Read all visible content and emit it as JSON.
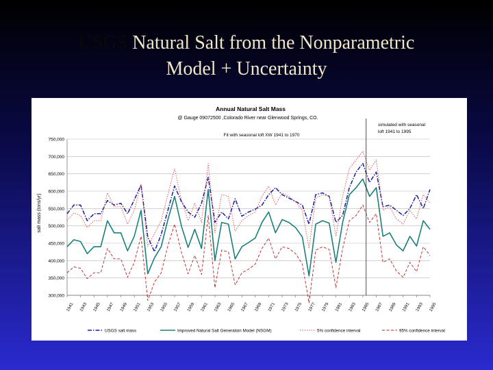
{
  "slide": {
    "title_prefix": "USGS",
    "title_line1": "Natural Salt from the Nonparametric",
    "title_line2": "Model + Uncertainty"
  },
  "chart_data": {
    "type": "line",
    "title": "Annual Natural Salt Mass",
    "subtitle": "@ Gauge 09072500 ,Colorado River near Glenwood Springs, CO.",
    "annotation_fit": "Fit with seasonal loft XW 1941 to 1970",
    "annotation_sim": "simulated with seasonal loft 1941 to 1995",
    "ylabel": "salt mass (tons/yr)",
    "ylim": [
      300000,
      750000
    ],
    "y_tick_labels": [
      "300,000",
      "350,000",
      "400,000",
      "450,000",
      "500,000",
      "550,000",
      "600,000",
      "650,000",
      "700,000",
      "750,000"
    ],
    "years": [
      1941,
      1942,
      1943,
      1944,
      1945,
      1946,
      1947,
      1948,
      1949,
      1950,
      1951,
      1952,
      1953,
      1954,
      1955,
      1956,
      1957,
      1958,
      1959,
      1960,
      1961,
      1962,
      1963,
      1964,
      1965,
      1966,
      1967,
      1968,
      1969,
      1970,
      1971,
      1972,
      1973,
      1974,
      1975,
      1976,
      1977,
      1978,
      1979,
      1980,
      1981,
      1982,
      1983,
      1984,
      1985,
      1986,
      1987,
      1988,
      1989,
      1990,
      1991,
      1992,
      1993,
      1994,
      1995
    ],
    "x_tick_labels": [
      "1941",
      "1943",
      "1945",
      "1947",
      "1949",
      "1951",
      "1953",
      "1955",
      "1957",
      "1959",
      "1961",
      "1963",
      "1965",
      "1967",
      "1969",
      "1971",
      "1973",
      "1975",
      "1977",
      "1979",
      "1981",
      "1983",
      "1985",
      "1987",
      "1989",
      "1991",
      "1993",
      "1995"
    ],
    "divider_year": 1985.5,
    "series": [
      {
        "name": "USGS salt mass",
        "color": "#1a1aa0",
        "style": "dashdot",
        "values": [
          535000,
          560000,
          560000,
          515000,
          535000,
          535000,
          573000,
          560000,
          565000,
          535000,
          575000,
          618000,
          468000,
          426000,
          475000,
          545000,
          615000,
          570000,
          540000,
          525000,
          565000,
          640000,
          510000,
          540000,
          520000,
          578000,
          528000,
          540000,
          548000,
          560000,
          590000,
          610000,
          590000,
          580000,
          570000,
          560000,
          505000,
          590000,
          595000,
          585000,
          510000,
          530000,
          610000,
          655000,
          680000,
          625000,
          655000,
          555000,
          560000,
          545000,
          530000,
          550000,
          590000,
          550000,
          605000
        ]
      },
      {
        "name": "Improved Natural Salt Generation Model (NSGM)",
        "color": "#1a7f7a",
        "style": "solid",
        "values": [
          440000,
          460000,
          455000,
          420000,
          440000,
          440000,
          515000,
          480000,
          480000,
          428000,
          470000,
          545000,
          362000,
          408000,
          440000,
          518000,
          585000,
          500000,
          438000,
          490000,
          435000,
          605000,
          400000,
          510000,
          505000,
          405000,
          440000,
          452000,
          465000,
          510000,
          540000,
          480000,
          518000,
          510000,
          495000,
          468000,
          356000,
          505000,
          515000,
          508000,
          395000,
          510000,
          590000,
          610000,
          635000,
          585000,
          610000,
          470000,
          480000,
          445000,
          428000,
          470000,
          442000,
          515000,
          490000
        ]
      },
      {
        "name": "5% confidence interval",
        "color": "#e04848",
        "style": "dotted",
        "values": [
          515000,
          537000,
          530000,
          495000,
          515000,
          515000,
          595000,
          555000,
          555000,
          505000,
          545000,
          620000,
          440000,
          478000,
          515000,
          590000,
          665000,
          575000,
          515000,
          565000,
          510000,
          680000,
          480000,
          590000,
          585000,
          485000,
          515000,
          530000,
          540000,
          585000,
          615000,
          560000,
          595000,
          585000,
          570000,
          545000,
          435000,
          580000,
          590000,
          585000,
          470000,
          585000,
          665000,
          690000,
          715000,
          660000,
          690000,
          545000,
          555000,
          520000,
          505000,
          545000,
          520000,
          590000,
          565000
        ]
      },
      {
        "name": "95% confidence interval",
        "color": "#c02020",
        "style": "dashed",
        "values": [
          365000,
          382000,
          378000,
          348000,
          365000,
          365000,
          435000,
          405000,
          405000,
          352000,
          395000,
          470000,
          285000,
          338000,
          365000,
          443000,
          505000,
          425000,
          362000,
          415000,
          360000,
          530000,
          322000,
          430000,
          425000,
          330000,
          365000,
          375000,
          390000,
          435000,
          465000,
          405000,
          440000,
          435000,
          420000,
          390000,
          278000,
          430000,
          440000,
          432000,
          322000,
          435000,
          515000,
          530000,
          560000,
          510000,
          535000,
          395000,
          405000,
          370000,
          352000,
          395000,
          368000,
          440000,
          415000
        ]
      }
    ]
  }
}
